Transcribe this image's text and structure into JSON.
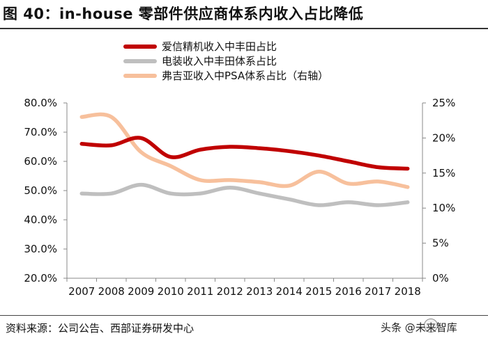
{
  "header": {
    "title": "图 40：in-house 零部件供应商体系内收入占比降低"
  },
  "footer": {
    "source": "资料来源：公司公告、西部证券研发中心",
    "watermark": "头条 @未来智库"
  },
  "chart_data": {
    "type": "line",
    "title": "图 40：in-house 零部件供应商体系内收入占比降低",
    "categories": [
      "2007",
      "2008",
      "2009",
      "2010",
      "2011",
      "2012",
      "2013",
      "2014",
      "2015",
      "2016",
      "2017",
      "2018"
    ],
    "y_left": {
      "min": 20,
      "max": 80,
      "step": 10,
      "ticks": [
        "20.0%",
        "30.0%",
        "40.0%",
        "50.0%",
        "60.0%",
        "70.0%",
        "80.0%"
      ]
    },
    "y_right": {
      "min": 0,
      "max": 25,
      "step": 5,
      "ticks": [
        "0%",
        "5%",
        "10%",
        "15%",
        "20%",
        "25%"
      ]
    },
    "legend_position": "top",
    "series": [
      {
        "name": "爱信精机收入中丰田占比",
        "axis": "left",
        "color": "#C00000",
        "values": [
          66,
          65.5,
          68,
          61.5,
          64,
          65,
          64.5,
          63.5,
          62,
          60,
          58,
          57.5
        ]
      },
      {
        "name": "电装收入中丰田体系占比",
        "axis": "left",
        "color": "#BFBFBF",
        "values": [
          49,
          49,
          52,
          49,
          49,
          51,
          49,
          47,
          45,
          46,
          45,
          46
        ]
      },
      {
        "name": "弗吉亚收入中PSA体系占比（右轴）",
        "axis": "right",
        "color": "#F7C09C",
        "values": [
          23,
          23,
          18,
          16,
          14,
          14,
          13.7,
          13.2,
          15.2,
          13.5,
          13.8,
          13
        ]
      }
    ]
  }
}
